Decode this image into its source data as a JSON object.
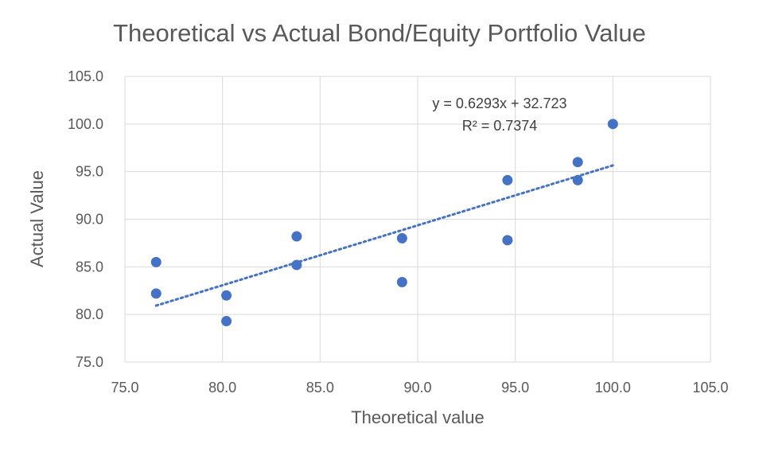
{
  "chart_data": {
    "type": "scatter",
    "title": "Theoretical vs Actual Bond/Equity Portfolio Value",
    "xlabel": "Theoretical value",
    "ylabel": "Actual Value",
    "xlim": [
      75.0,
      105.0
    ],
    "ylim": [
      75.0,
      105.0
    ],
    "x_ticks": [
      "75.0",
      "80.0",
      "85.0",
      "90.0",
      "95.0",
      "100.0",
      "105.0"
    ],
    "y_ticks": [
      "75.0",
      "80.0",
      "85.0",
      "90.0",
      "95.0",
      "100.0",
      "105.0"
    ],
    "grid": true,
    "legend": "none",
    "series": [
      {
        "points": [
          {
            "x": 76.6,
            "y": 85.5
          },
          {
            "x": 76.6,
            "y": 82.2
          },
          {
            "x": 80.2,
            "y": 82.0
          },
          {
            "x": 80.2,
            "y": 79.3
          },
          {
            "x": 83.8,
            "y": 88.2
          },
          {
            "x": 83.8,
            "y": 85.2
          },
          {
            "x": 89.2,
            "y": 88.0
          },
          {
            "x": 89.2,
            "y": 83.4
          },
          {
            "x": 94.6,
            "y": 94.1
          },
          {
            "x": 94.6,
            "y": 87.8
          },
          {
            "x": 98.2,
            "y": 96.0
          },
          {
            "x": 98.2,
            "y": 94.1
          },
          {
            "x": 100.0,
            "y": 100.0
          }
        ],
        "color": "#4472C4"
      }
    ],
    "trendline": {
      "type": "linear",
      "slope": 0.6293,
      "intercept": 32.723,
      "x_range": [
        76.6,
        100.0
      ],
      "color": "#4472C4",
      "style": "dotted"
    },
    "annotations": {
      "equation": "y = 0.6293x + 32.723",
      "r_squared": "R² = 0.7374"
    }
  }
}
